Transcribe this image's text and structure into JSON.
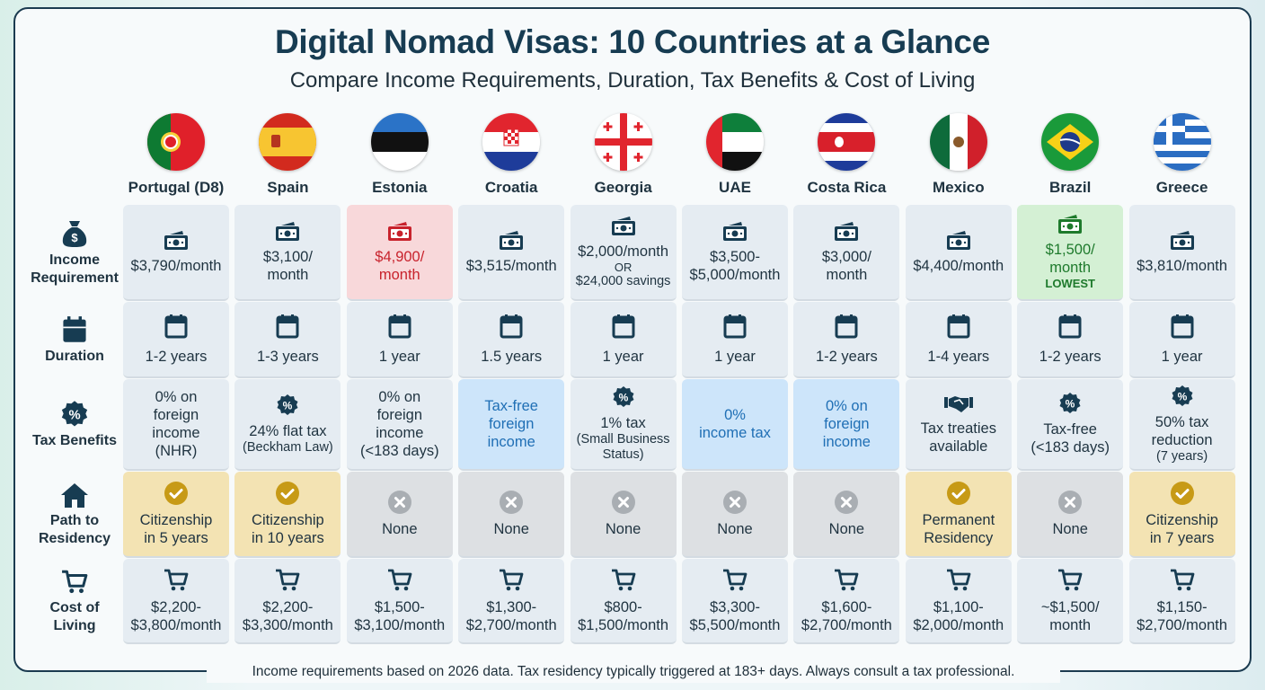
{
  "header": {
    "title": "Digital Nomad Visas: 10 Countries at a Glance",
    "subtitle": "Compare Income Requirements, Duration, Tax Benefits & Cost of Living"
  },
  "row_labels": [
    {
      "label": "Income Requirement",
      "icon": "money-bag-icon"
    },
    {
      "label": "Duration",
      "icon": "calendar-icon"
    },
    {
      "label": "Tax Benefits",
      "icon": "percent-badge-icon"
    },
    {
      "label": "Path to Residency",
      "icon": "house-icon"
    },
    {
      "label": "Cost of Living",
      "icon": "cart-icon"
    }
  ],
  "colors": {
    "navy": "#173c52",
    "red_highlight": "#f8d8da",
    "green_highlight": "#d4f0d4",
    "blue_highlight": "#cde5fa",
    "gold_highlight": "#f3e3b3",
    "gray_none": "#dde0e3"
  },
  "countries": [
    {
      "name": "Portugal (D8)",
      "flag": "portugal",
      "income": {
        "lines": [
          "$3,790/month"
        ],
        "highlight": ""
      },
      "duration": "1-2 years",
      "tax": {
        "lines": [
          "0% on",
          "foreign",
          "income",
          "(NHR)"
        ],
        "icon": "",
        "highlight": ""
      },
      "residency": {
        "lines": [
          "Citizenship",
          "in 5 years"
        ],
        "status": "yes"
      },
      "cost": [
        "$2,200-",
        "$3,800/month"
      ]
    },
    {
      "name": "Spain",
      "flag": "spain",
      "income": {
        "lines": [
          "$3,100/",
          "month"
        ],
        "highlight": ""
      },
      "duration": "1-3 years",
      "tax": {
        "lines": [
          "24% flat tax"
        ],
        "sub": [
          "(Beckham Law)"
        ],
        "icon": "percent",
        "highlight": ""
      },
      "residency": {
        "lines": [
          "Citizenship",
          "in 10 years"
        ],
        "status": "yes"
      },
      "cost": [
        "$2,200-",
        "$3,300/month"
      ]
    },
    {
      "name": "Estonia",
      "flag": "estonia",
      "income": {
        "lines": [
          "$4,900/",
          "month"
        ],
        "highlight": "red"
      },
      "duration": "1 year",
      "tax": {
        "lines": [
          "0% on",
          "foreign",
          "income",
          "(<183 days)"
        ],
        "icon": "",
        "highlight": ""
      },
      "residency": {
        "lines": [
          "None"
        ],
        "status": "no"
      },
      "cost": [
        "$1,500-",
        "$3,100/month"
      ]
    },
    {
      "name": "Croatia",
      "flag": "croatia",
      "income": {
        "lines": [
          "$3,515/month"
        ],
        "highlight": ""
      },
      "duration": "1.5 years",
      "tax": {
        "lines": [
          "Tax-free",
          "foreign",
          "income"
        ],
        "icon": "",
        "highlight": "blue"
      },
      "residency": {
        "lines": [
          "None"
        ],
        "status": "no"
      },
      "cost": [
        "$1,300-",
        "$2,700/month"
      ]
    },
    {
      "name": "Georgia",
      "flag": "georgia",
      "income": {
        "lines": [
          "$2,000/month"
        ],
        "sub": [
          "OR",
          "$24,000 savings"
        ],
        "highlight": ""
      },
      "duration": "1 year",
      "tax": {
        "lines": [
          "1% tax"
        ],
        "sub": [
          "(Small Business",
          "Status)"
        ],
        "icon": "percent",
        "highlight": ""
      },
      "residency": {
        "lines": [
          "None"
        ],
        "status": "no"
      },
      "cost": [
        "$800-",
        "$1,500/month"
      ]
    },
    {
      "name": "UAE",
      "flag": "uae",
      "income": {
        "lines": [
          "$3,500-",
          "$5,000/month"
        ],
        "highlight": ""
      },
      "duration": "1 year",
      "tax": {
        "lines": [
          "0%",
          "income tax"
        ],
        "icon": "",
        "highlight": "blue"
      },
      "residency": {
        "lines": [
          "None"
        ],
        "status": "no"
      },
      "cost": [
        "$3,300-",
        "$5,500/month"
      ]
    },
    {
      "name": "Costa Rica",
      "flag": "costarica",
      "income": {
        "lines": [
          "$3,000/",
          "month"
        ],
        "highlight": ""
      },
      "duration": "1-2 years",
      "tax": {
        "lines": [
          "0% on",
          "foreign",
          "income"
        ],
        "icon": "",
        "highlight": "blue"
      },
      "residency": {
        "lines": [
          "None"
        ],
        "status": "no"
      },
      "cost": [
        "$1,600-",
        "$2,700/month"
      ]
    },
    {
      "name": "Mexico",
      "flag": "mexico",
      "income": {
        "lines": [
          "$4,400/month"
        ],
        "highlight": ""
      },
      "duration": "1-4 years",
      "tax": {
        "lines": [
          "Tax treaties",
          "available"
        ],
        "icon": "handshake",
        "highlight": ""
      },
      "residency": {
        "lines": [
          "Permanent",
          "Residency"
        ],
        "status": "yes"
      },
      "cost": [
        "$1,100-",
        "$2,000/month"
      ]
    },
    {
      "name": "Brazil",
      "flag": "brazil",
      "income": {
        "lines": [
          "$1,500/",
          "month"
        ],
        "badge": "LOWEST",
        "highlight": "green"
      },
      "duration": "1-2 years",
      "tax": {
        "lines": [
          "Tax-free",
          "(<183 days)"
        ],
        "icon": "percent",
        "highlight": ""
      },
      "residency": {
        "lines": [
          "None"
        ],
        "status": "no"
      },
      "cost": [
        "~$1,500/",
        "month"
      ]
    },
    {
      "name": "Greece",
      "flag": "greece",
      "income": {
        "lines": [
          "$3,810/month"
        ],
        "highlight": ""
      },
      "duration": "1 year",
      "tax": {
        "lines": [
          "50% tax",
          "reduction"
        ],
        "sub": [
          "(7 years)"
        ],
        "icon": "percent",
        "highlight": ""
      },
      "residency": {
        "lines": [
          "Citizenship",
          "in 7 years"
        ],
        "status": "yes"
      },
      "cost": [
        "$1,150-",
        "$2,700/month"
      ]
    }
  ],
  "footer": "Income requirements based on 2026 data. Tax residency typically triggered at 183+ days. Always consult a tax professional."
}
